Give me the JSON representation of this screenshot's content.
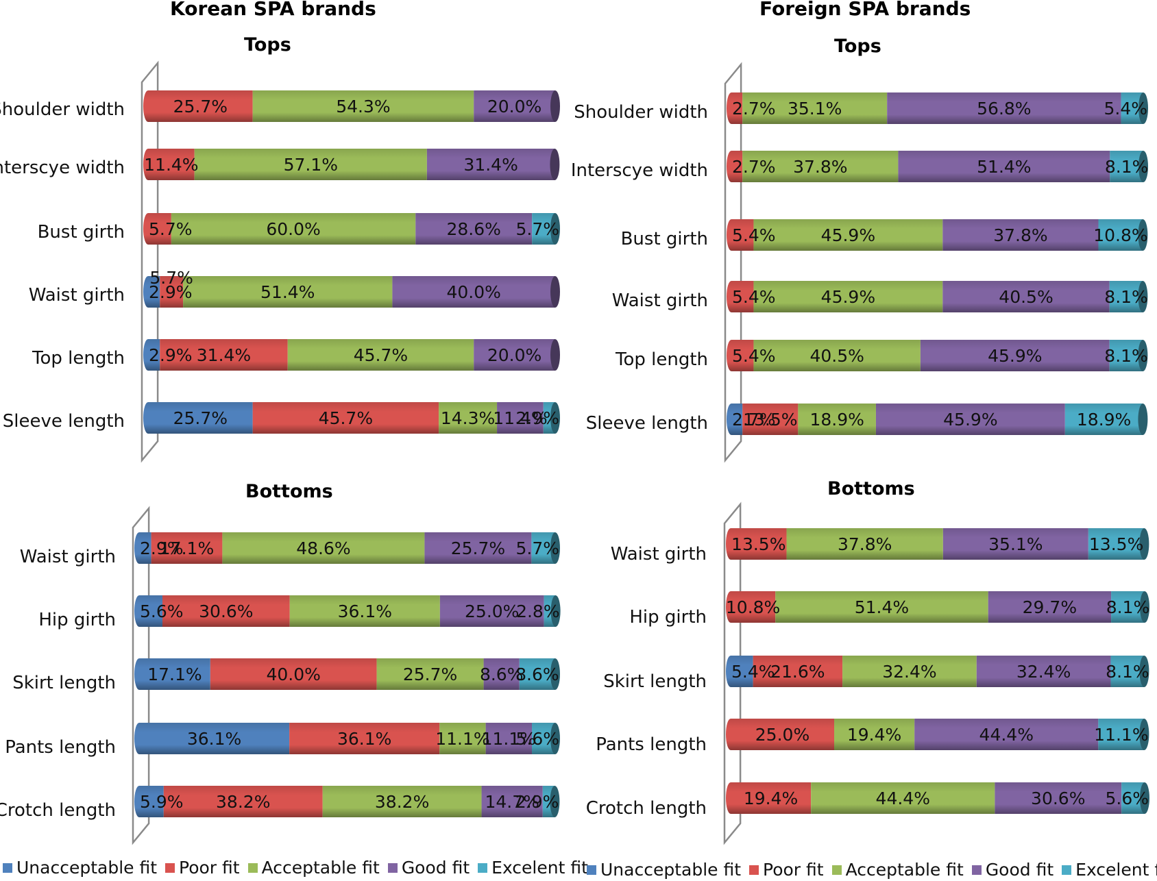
{
  "headings": {
    "korean": "Korean SPA brands",
    "foreign": "Foreign SPA brands"
  },
  "colors": {
    "Unacceptable fit": "#4f81bd",
    "Poor fit": "#d9534f",
    "Acceptable fit": "#9bbb59",
    "Good fit": "#8064a2",
    "Excelent fit": "#4bacc6"
  },
  "legend": [
    "Unacceptable fit",
    "Poor fit",
    "Acceptable fit",
    "Good fit",
    "Excelent fit"
  ],
  "chart_data": [
    {
      "type": "bar",
      "orientation": "horizontal-stacked-100",
      "group": "Korean SPA brands",
      "title": "Tops",
      "categories": [
        "Shoulder width",
        "Interscye width",
        "Bust girth",
        "Waist girth",
        "Top length",
        "Sleeve length"
      ],
      "series": [
        {
          "name": "Unacceptable fit",
          "values": [
            0,
            0,
            0,
            2.9,
            2.9,
            25.7
          ]
        },
        {
          "name": "Poor fit",
          "values": [
            25.7,
            11.4,
            5.7,
            5.7,
            31.4,
            45.7
          ]
        },
        {
          "name": "Acceptable fit",
          "values": [
            54.3,
            57.1,
            60.0,
            51.4,
            45.7,
            14.3
          ]
        },
        {
          "name": "Good fit",
          "values": [
            20.0,
            31.4,
            28.6,
            40.0,
            20.0,
            11.4
          ]
        },
        {
          "name": "Excelent fit",
          "values": [
            0,
            0,
            5.7,
            0,
            0,
            2.9
          ]
        }
      ],
      "xlim": [
        0,
        100
      ]
    },
    {
      "type": "bar",
      "orientation": "horizontal-stacked-100",
      "group": "Foreign SPA brands",
      "title": "Tops",
      "categories": [
        "Shoulder width",
        "Interscye width",
        "Bust girth",
        "Waist girth",
        "Top length",
        "Sleeve length"
      ],
      "series": [
        {
          "name": "Unacceptable fit",
          "values": [
            0,
            0,
            0,
            0,
            0,
            2.7
          ]
        },
        {
          "name": "Poor fit",
          "values": [
            2.7,
            2.7,
            5.4,
            5.4,
            5.4,
            13.5
          ]
        },
        {
          "name": "Acceptable fit",
          "values": [
            35.1,
            37.8,
            45.9,
            45.9,
            40.5,
            18.9
          ]
        },
        {
          "name": "Good fit",
          "values": [
            56.8,
            51.4,
            37.8,
            40.5,
            45.9,
            45.9
          ]
        },
        {
          "name": "Excelent fit",
          "values": [
            5.4,
            8.1,
            10.8,
            8.1,
            8.1,
            18.9
          ]
        }
      ],
      "xlim": [
        0,
        100
      ]
    },
    {
      "type": "bar",
      "orientation": "horizontal-stacked-100",
      "group": "Korean SPA brands",
      "title": "Bottoms",
      "categories": [
        "Waist girth",
        "Hip girth",
        "Skirt length",
        "Pants length",
        "Crotch length"
      ],
      "series": [
        {
          "name": "Unacceptable fit",
          "values": [
            2.9,
            5.6,
            17.1,
            36.1,
            5.9
          ]
        },
        {
          "name": "Poor fit",
          "values": [
            17.1,
            30.6,
            40.0,
            36.1,
            38.2
          ]
        },
        {
          "name": "Acceptable fit",
          "values": [
            48.6,
            36.1,
            25.7,
            11.1,
            38.2
          ]
        },
        {
          "name": "Good fit",
          "values": [
            25.7,
            25.0,
            8.6,
            11.1,
            14.7
          ]
        },
        {
          "name": "Excelent fit",
          "values": [
            5.7,
            2.8,
            8.6,
            5.6,
            2.9
          ]
        }
      ],
      "xlim": [
        0,
        100
      ]
    },
    {
      "type": "bar",
      "orientation": "horizontal-stacked-100",
      "group": "Foreign SPA brands",
      "title": "Bottoms",
      "categories": [
        "Waist girth",
        "Hip girth",
        "Skirt length",
        "Pants length",
        "Crotch length"
      ],
      "series": [
        {
          "name": "Unacceptable fit",
          "values": [
            0,
            0,
            5.4,
            0,
            0
          ]
        },
        {
          "name": "Poor fit",
          "values": [
            13.5,
            10.8,
            21.6,
            25.0,
            19.4
          ]
        },
        {
          "name": "Acceptable fit",
          "values": [
            37.8,
            51.4,
            32.4,
            19.4,
            44.4
          ]
        },
        {
          "name": "Good fit",
          "values": [
            35.1,
            29.7,
            32.4,
            44.4,
            30.6
          ]
        },
        {
          "name": "Excelent fit",
          "values": [
            13.5,
            8.1,
            8.1,
            11.1,
            5.6
          ]
        }
      ],
      "xlim": [
        0,
        100
      ]
    }
  ]
}
